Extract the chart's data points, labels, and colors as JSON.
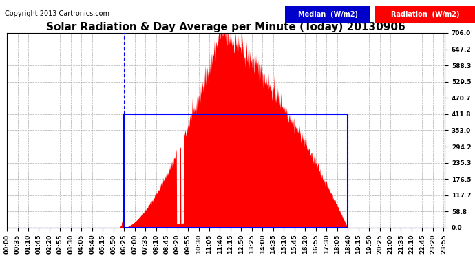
{
  "title": "Solar Radiation & Day Average per Minute (Today) 20130906",
  "copyright": "Copyright 2013 Cartronics.com",
  "ymax": 706.0,
  "ymin": 0.0,
  "yticks": [
    0.0,
    58.8,
    117.7,
    176.5,
    235.3,
    294.2,
    353.0,
    411.8,
    470.7,
    529.5,
    588.3,
    647.2,
    706.0
  ],
  "ytick_labels": [
    "0.0",
    "58.8",
    "117.7",
    "176.5",
    "235.3",
    "294.2",
    "353.0",
    "411.8",
    "470.7",
    "529.5",
    "588.3",
    "647.2",
    "706.0"
  ],
  "median_value": 411.8,
  "sunrise_minute": 385,
  "sunset_minute": 1120,
  "total_minutes": 1440,
  "radiation_color": "#FF0000",
  "median_color": "#0000FF",
  "background_color": "#FFFFFF",
  "plot_bg_color": "#FFFFFF",
  "grid_color": "#999999",
  "legend_median_bg": "#0000CD",
  "legend_radiation_bg": "#FF0000",
  "title_fontsize": 11,
  "copyright_fontsize": 7,
  "tick_fontsize": 6.5,
  "xtick_interval": 35,
  "peak_minute": 700,
  "peak_value": 706.0,
  "spike_dip1": 565,
  "spike_dip2": 575
}
